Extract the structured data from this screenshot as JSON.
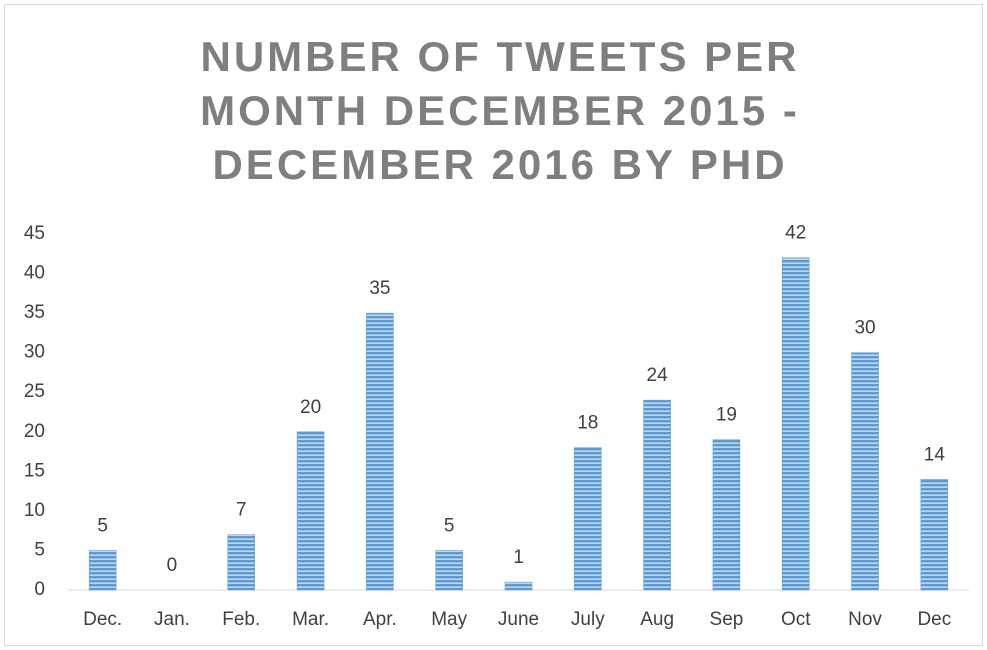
{
  "chart_data": {
    "type": "bar",
    "title": "NUMBER OF TWEETS PER MONTH DECEMBER 2015 - DECEMBER 2016 BY PHD",
    "categories": [
      "Dec.",
      "Jan.",
      "Feb.",
      "Mar.",
      "Apr.",
      "May",
      "June",
      "July",
      "Aug",
      "Sep",
      "Oct",
      "Nov",
      "Dec"
    ],
    "values": [
      5,
      0,
      7,
      20,
      35,
      5,
      1,
      18,
      24,
      19,
      42,
      30,
      14
    ],
    "color": "#5b9bd5",
    "ylim": [
      0,
      45
    ],
    "yticks": [
      0,
      5,
      10,
      15,
      20,
      25,
      30,
      35,
      40,
      45
    ],
    "grid": false
  }
}
